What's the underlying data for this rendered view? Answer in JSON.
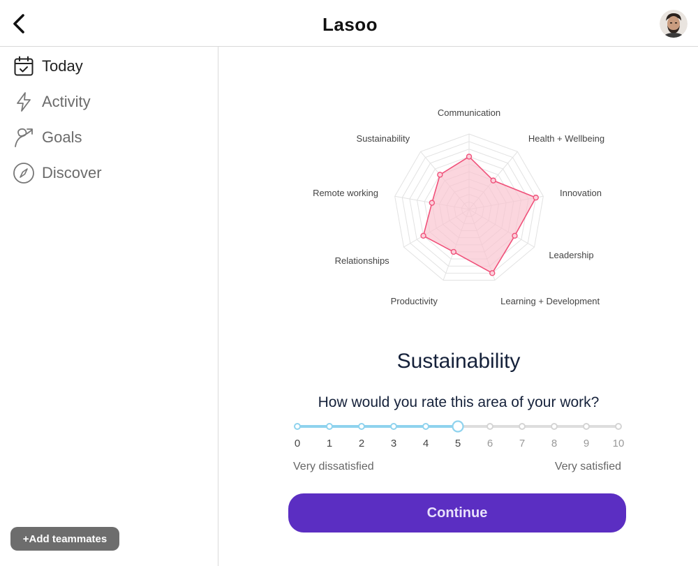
{
  "app": {
    "logo_text": "Lasoo",
    "colors": {
      "accent": "#5b2ec2",
      "radar_stroke": "#f0517a",
      "radar_fill": "#f9c4d0",
      "slider_active": "#8fd3ee",
      "slider_inactive": "#dddddd"
    }
  },
  "header": {
    "back_icon": "chevron-left-icon",
    "avatar_icon": "user-avatar"
  },
  "sidebar": {
    "items": [
      {
        "label": "Today",
        "icon": "calendar-check-icon",
        "active": true
      },
      {
        "label": "Activity",
        "icon": "lightning-icon",
        "active": false
      },
      {
        "label": "Goals",
        "icon": "goal-arrow-icon",
        "active": false
      },
      {
        "label": "Discover",
        "icon": "compass-icon",
        "active": false
      }
    ],
    "add_teammates_label": "+Add teammates"
  },
  "chart_data": {
    "type": "radar",
    "scale_max": 10,
    "rings": 10,
    "axes": [
      "Communication",
      "Health + Wellbeing",
      "Innovation",
      "Leadership",
      "Learning + Development",
      "Productivity",
      "Relationships",
      "Remote working",
      "Sustainability"
    ],
    "values": [
      7,
      5,
      9,
      7,
      9,
      6,
      7,
      5,
      6
    ]
  },
  "rating": {
    "area_title": "Sustainability",
    "question": "How would you rate this area of your work?",
    "scale": [
      "0",
      "1",
      "2",
      "3",
      "4",
      "5",
      "6",
      "7",
      "8",
      "9",
      "10"
    ],
    "selected": 5,
    "low_label": "Very dissatisfied",
    "high_label": "Very satisfied"
  },
  "continue_label": "Continue"
}
